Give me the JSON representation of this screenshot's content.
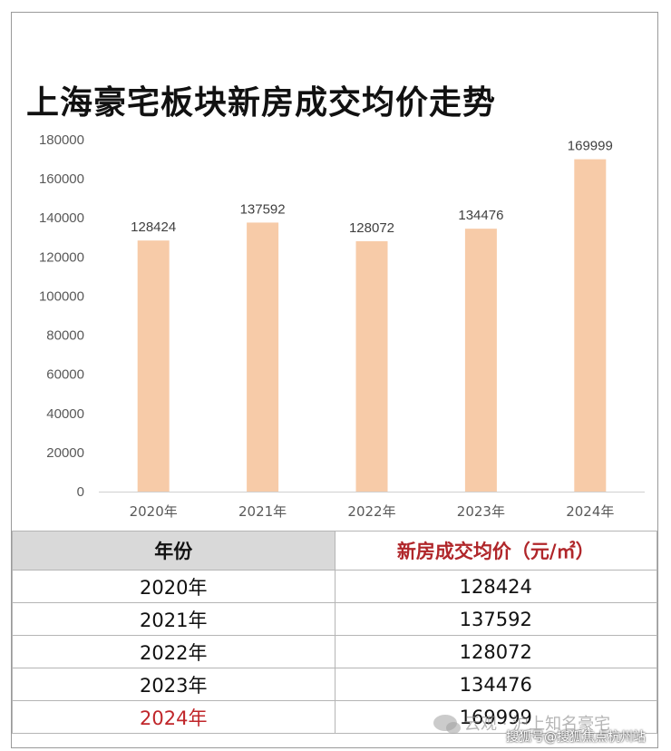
{
  "chart_data": {
    "type": "bar",
    "title": "上海豪宅板块新房成交均价走势",
    "categories": [
      "2020年",
      "2021年",
      "2022年",
      "2023年",
      "2024年"
    ],
    "values": [
      128424,
      137592,
      128072,
      134476,
      169999
    ],
    "data_labels": [
      "128424",
      "137592",
      "128072",
      "134476",
      "169999"
    ],
    "ylim": [
      0,
      180000
    ],
    "yticks": [
      "0",
      "20000",
      "40000",
      "60000",
      "80000",
      "100000",
      "120000",
      "140000",
      "160000",
      "180000"
    ],
    "xlabel": "",
    "ylabel": "",
    "grid": false,
    "bar_color": "#f7cba8"
  },
  "table": {
    "headers": [
      "年份",
      "新房成交均价（元/㎡）"
    ],
    "rows": [
      [
        "2020年",
        "128424"
      ],
      [
        "2021年",
        "137592"
      ],
      [
        "2022年",
        "128072"
      ],
      [
        "2023年",
        "134476"
      ],
      [
        "2024年",
        "169999"
      ]
    ],
    "highlight_color": "#c0262a"
  },
  "watermark": {
    "line1": "云观 · 沪上知名豪宅",
    "line2": "搜狐号@搜狐焦点杭州站"
  }
}
